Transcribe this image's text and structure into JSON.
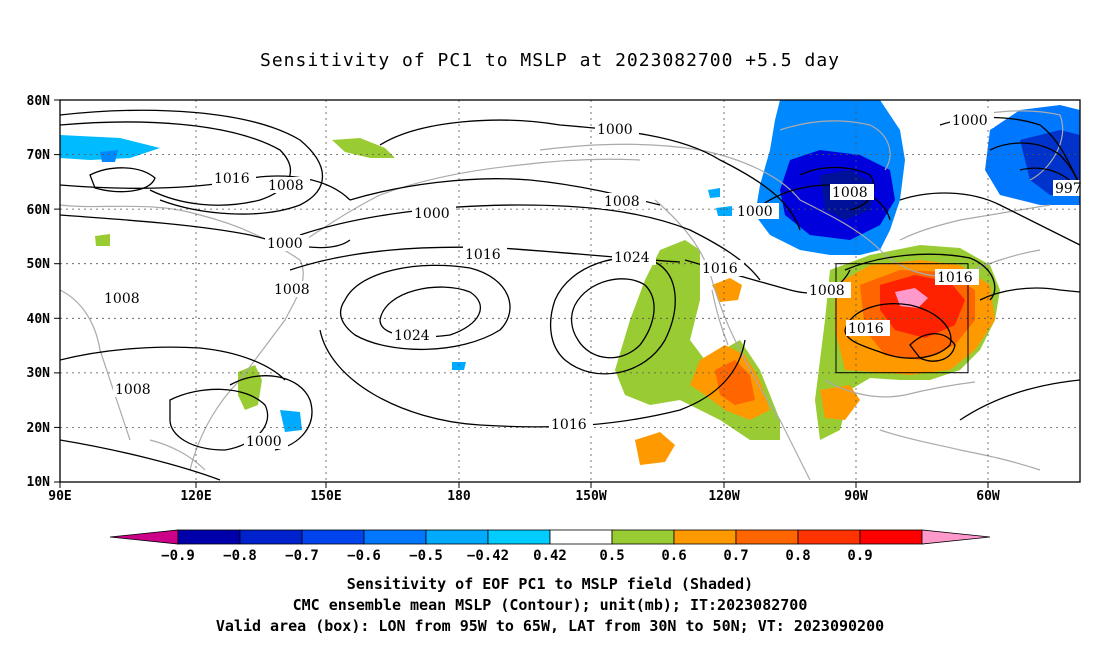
{
  "title": "Sensitivity of PC1 to MSLP at 2023082700 +5.5 day",
  "lat_labels": [
    "80N",
    "70N",
    "60N",
    "50N",
    "40N",
    "30N",
    "20N",
    "10N"
  ],
  "lon_labels": [
    "90E",
    "120E",
    "150E",
    "180",
    "150W",
    "120W",
    "90W",
    "60W"
  ],
  "colorbar": {
    "labels": [
      "−0.9",
      "−0.8",
      "−0.7",
      "−0.6",
      "−0.5",
      "−0.42",
      "0.42",
      "0.5",
      "0.6",
      "0.7",
      "0.8",
      "0.9"
    ],
    "colors": [
      "#cc0088",
      "#0000aa",
      "#0022cc",
      "#0044ee",
      "#0077ff",
      "#00aaff",
      "#00ccff",
      "#ffffff",
      "#99cc33",
      "#ff9900",
      "#ff6600",
      "#ff3300",
      "#ff0000",
      "#ff99cc"
    ]
  },
  "contour_labels": [
    "1000",
    "1016",
    "1008",
    "1000",
    "1008",
    "1000",
    "1008",
    "1016",
    "1024",
    "1024",
    "1008",
    "1016",
    "1000",
    "1008",
    "1000",
    "1016",
    "1008",
    "1016",
    "1000",
    "997",
    "1008",
    "1016"
  ],
  "captions": [
    "Sensitivity of EOF PC1 to MSLP field (Shaded)",
    "CMC ensemble mean MSLP (Contour); unit(mb); IT:2023082700",
    "Valid area (box): LON from 95W to 65W, LAT from 30N to 50N; VT: 2023090200"
  ]
}
